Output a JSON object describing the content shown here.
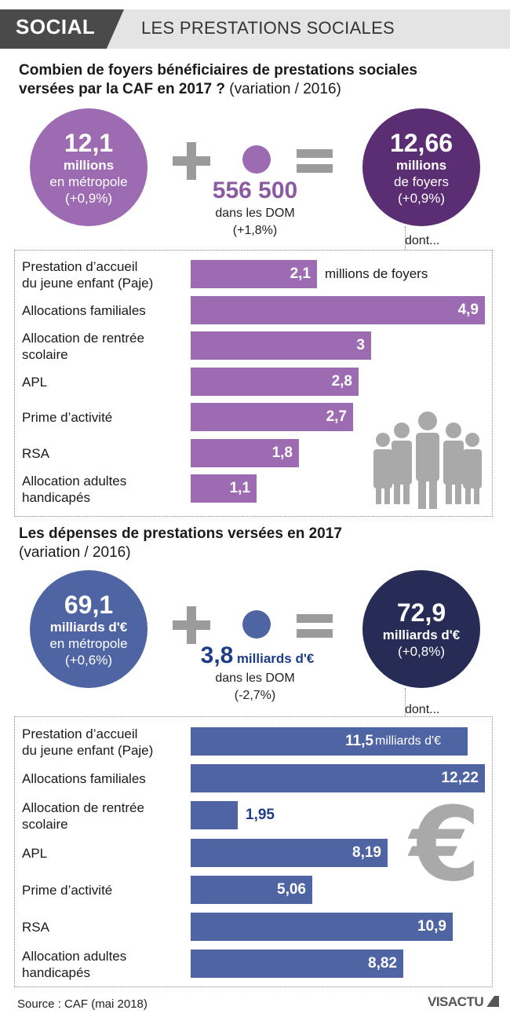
{
  "header": {
    "tag": "SOCIAL",
    "subtitle": "LES PRESTATIONS SOCIALES"
  },
  "colors": {
    "purple_light": "#9d6bb1",
    "purple_dark": "#5b2d73",
    "blue_light": "#4f64a3",
    "blue_dark": "#262c55",
    "gray": "#9b9b9b"
  },
  "section1": {
    "title_bold_1": "Combien de foyers bénéficiaires de prestations sociales",
    "title_bold_2": "versées par la CAF en 2017 ?",
    "title_normal_2": " (variation / 2016)",
    "metro": {
      "value": "12,1",
      "unit": "millions",
      "line1": "en métropole",
      "line2": "(+0,9%)"
    },
    "dom": {
      "value": "556 500",
      "line1": "dans les DOM",
      "line2": "(+1,8%)"
    },
    "total": {
      "value": "12,66",
      "unit": "millions",
      "line1": "de foyers",
      "line2": "(+0,9%)"
    },
    "dont": "dont...",
    "unit_label": "millions de foyers"
  },
  "section2": {
    "title_bold_1": "Les dépenses de prestations versées en 2017",
    "title_normal_2": "(variation / 2016)",
    "metro": {
      "value": "69,1",
      "unit": "milliards d'€",
      "line1": "en métropole",
      "line2": "(+0,6%)"
    },
    "dom": {
      "value": "3,8",
      "unit": "milliards d'€",
      "line1": "dans les DOM",
      "line2": "(-2,7%)"
    },
    "total": {
      "value": "72,9",
      "unit": "milliards d'€",
      "line1": "(+0,8%)"
    },
    "dont": "dont...",
    "unit_label": "milliards d'€"
  },
  "chart_data": [
    {
      "type": "bar",
      "title": "Combien de foyers bénéficiaires de prestations sociales versées par la CAF en 2017 ?",
      "categories": [
        "Prestation d’accueil du jeune enfant (Paje)",
        "Allocations familiales",
        "Allocation de rentrée scolaire",
        "APL",
        "Prime d’activité",
        "RSA",
        "Allocation adultes handicapés"
      ],
      "labels": [
        [
          "Prestation d’accueil",
          "du jeune enfant (Paje)"
        ],
        [
          "Allocations familiales"
        ],
        [
          "Allocation de rentrée",
          "scolaire"
        ],
        [
          "APL"
        ],
        [
          "Prime d’activité"
        ],
        [
          "RSA"
        ],
        [
          "Allocation adultes",
          "handicapés"
        ]
      ],
      "values": [
        2.1,
        4.9,
        3,
        2.8,
        2.7,
        1.8,
        1.1
      ],
      "value_labels": [
        "2,1",
        "4,9",
        "3",
        "2,8",
        "2,7",
        "1,8",
        "1,1"
      ],
      "unit": "millions de foyers",
      "orientation": "horizontal"
    },
    {
      "type": "bar",
      "title": "Les dépenses de prestations versées en 2017",
      "categories": [
        "Prestation d’accueil du jeune enfant (Paje)",
        "Allocations familiales",
        "Allocation de rentrée scolaire",
        "APL",
        "Prime d’activité",
        "RSA",
        "Allocation adultes handicapés"
      ],
      "labels": [
        [
          "Prestation d’accueil",
          "du jeune enfant (Paje)"
        ],
        [
          "Allocations familiales"
        ],
        [
          "Allocation de rentrée",
          "scolaire"
        ],
        [
          "APL"
        ],
        [
          "Prime d’activité"
        ],
        [
          "RSA"
        ],
        [
          "Allocation adultes",
          "handicapés"
        ]
      ],
      "values": [
        11.5,
        12.22,
        1.95,
        8.19,
        5.06,
        10.9,
        8.82
      ],
      "value_labels": [
        "11,5",
        "12,22",
        "1,95",
        "8,19",
        "5,06",
        "10,9",
        "8,82"
      ],
      "unit": "milliards d'€",
      "orientation": "horizontal"
    }
  ],
  "footer": {
    "source": "Source : CAF (mai 2018)",
    "logo": "VISACTU"
  }
}
